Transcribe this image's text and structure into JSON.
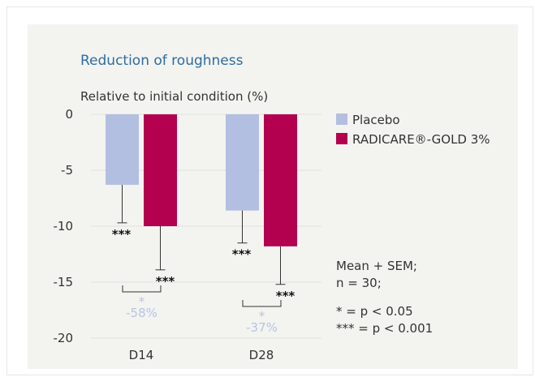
{
  "chart_data": {
    "type": "bar",
    "title": "Reduction of roughness",
    "ylabel": "Relative to initial condition (%)",
    "ylim": [
      -20,
      0
    ],
    "yticks": [
      "0",
      "-5",
      "-10",
      "-15",
      "-20"
    ],
    "categories": [
      "D14",
      "D28"
    ],
    "series": [
      {
        "name": "Placebo",
        "color": "#b3bfe0",
        "values": [
          -6.3,
          -8.6
        ],
        "sem": [
          3.4,
          2.9
        ],
        "sig": [
          "***",
          "***"
        ]
      },
      {
        "name": "RADICARE®-GOLD 3%",
        "color": "#b3004f",
        "values": [
          -10.0,
          -11.8
        ],
        "sem": [
          3.9,
          3.4
        ],
        "sig": [
          "***",
          "***"
        ]
      }
    ],
    "comparisons": [
      {
        "star": "*",
        "label": "-58%"
      },
      {
        "star": "*",
        "label": "-37%"
      }
    ],
    "note_lines": [
      "Mean + SEM;",
      "n = 30;"
    ],
    "sig_legend": [
      " * = p < 0.05",
      "*** = p < 0.001"
    ]
  }
}
